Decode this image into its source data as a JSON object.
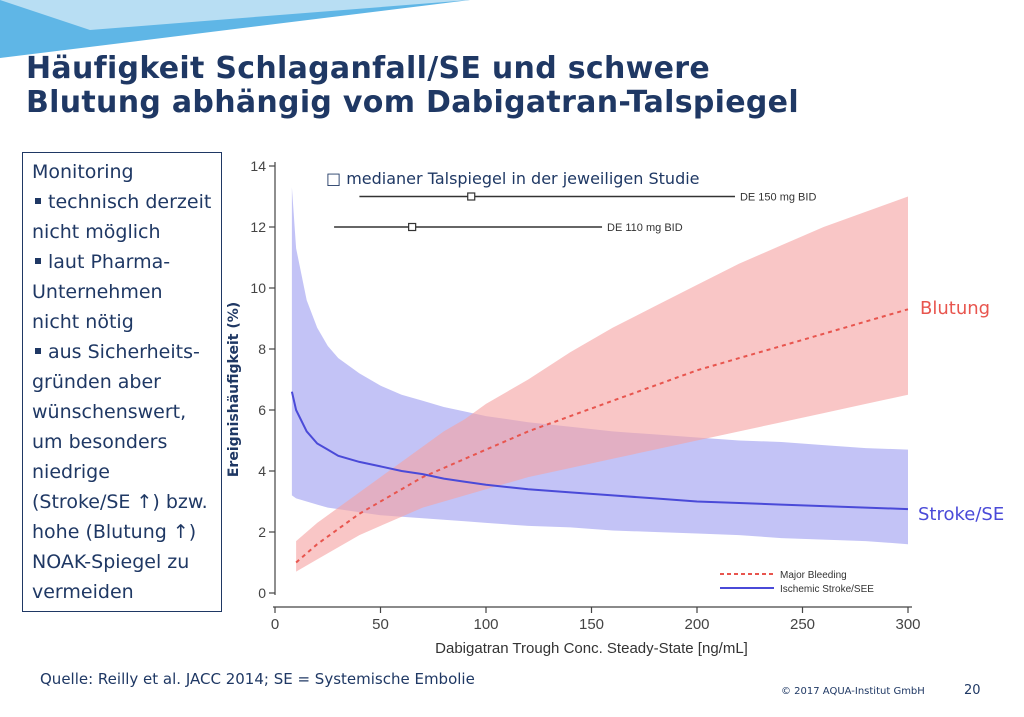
{
  "slide": {
    "title_line1": "Häufigkeit Schlaganfall/SE und schwere",
    "title_line2": "Blutung abhängig vom Dabigatran-Talspiegel",
    "title_color": "#1f3864",
    "banner_colors": [
      "#5fb6e6",
      "#b8def3"
    ]
  },
  "monitoring": {
    "lines": [
      {
        "text": "Monitoring",
        "bullet": false
      },
      {
        "text": "technisch derzeit",
        "bullet": true
      },
      {
        "text": "nicht möglich",
        "bullet": false
      },
      {
        "text": "laut Pharma-",
        "bullet": true
      },
      {
        "text": "Unternehmen",
        "bullet": false
      },
      {
        "text": "nicht nötig",
        "bullet": false
      },
      {
        "text": "aus Sicherheits-",
        "bullet": true
      },
      {
        "text": "gründen aber",
        "bullet": false
      },
      {
        "text": "wünschenswert,",
        "bullet": false
      },
      {
        "text": "um besonders",
        "bullet": false
      },
      {
        "text": "niedrige",
        "bullet": false
      },
      {
        "text": "(Stroke/SE ↑) bzw.",
        "bullet": false
      },
      {
        "text": "hohe (Blutung ↑)",
        "bullet": false
      },
      {
        "text": "NOAK-Spiegel zu",
        "bullet": false
      },
      {
        "text": "vermeiden",
        "bullet": false
      }
    ]
  },
  "chart_data": {
    "type": "line",
    "xlabel": "Dabigatran Trough Conc. Steady-State [ng/mL]",
    "ylabel": "Ereignishäufigkeit (%)",
    "xlim": [
      0,
      300
    ],
    "ylim": [
      0,
      14
    ],
    "xticks": [
      "0",
      "50",
      "100",
      "150",
      "200",
      "250",
      "300"
    ],
    "yticks": [
      "0",
      "2",
      "4",
      "6",
      "8",
      "10",
      "12",
      "14"
    ],
    "grid": false,
    "legend_position": "bottom-right",
    "legend": [
      {
        "label": "Major Bleeding",
        "color": "#e8554e",
        "dash": true
      },
      {
        "label": "Ischemic Stroke/SEE",
        "color": "#4a4ad8",
        "dash": false
      }
    ],
    "annotation": "□ medianer Talspiegel in der jeweiligen Studie",
    "series": [
      {
        "key": "bleeding",
        "label": "Blutung",
        "color": "#e8554e",
        "band_color": "#f6a3a3",
        "x": [
          10,
          20,
          30,
          40,
          50,
          60,
          70,
          80,
          90,
          100,
          120,
          140,
          160,
          180,
          200,
          220,
          240,
          260,
          280,
          300
        ],
        "y": [
          1.0,
          1.6,
          2.1,
          2.6,
          3.0,
          3.4,
          3.8,
          4.1,
          4.4,
          4.7,
          5.3,
          5.8,
          6.3,
          6.8,
          7.3,
          7.7,
          8.1,
          8.5,
          8.9,
          9.3
        ],
        "lower": [
          0.7,
          1.1,
          1.5,
          1.9,
          2.2,
          2.5,
          2.8,
          3.0,
          3.2,
          3.4,
          3.8,
          4.1,
          4.4,
          4.7,
          5.0,
          5.3,
          5.6,
          5.9,
          6.2,
          6.5
        ],
        "upper": [
          1.7,
          2.3,
          2.8,
          3.3,
          3.8,
          4.3,
          4.8,
          5.3,
          5.7,
          6.2,
          7.0,
          7.9,
          8.7,
          9.4,
          10.1,
          10.8,
          11.4,
          12.0,
          12.5,
          13.0
        ]
      },
      {
        "key": "stroke",
        "label": "Stroke/SE",
        "color": "#4a4ad8",
        "band_color": "#a9a9f2",
        "x": [
          8,
          10,
          15,
          20,
          25,
          30,
          40,
          50,
          60,
          70,
          80,
          90,
          100,
          120,
          140,
          160,
          180,
          200,
          220,
          240,
          260,
          280,
          300
        ],
        "y": [
          6.6,
          6.0,
          5.3,
          4.9,
          4.7,
          4.5,
          4.3,
          4.15,
          4.0,
          3.9,
          3.75,
          3.65,
          3.55,
          3.4,
          3.3,
          3.2,
          3.1,
          3.0,
          2.95,
          2.9,
          2.85,
          2.8,
          2.75
        ],
        "lower": [
          3.2,
          3.1,
          3.0,
          2.9,
          2.8,
          2.75,
          2.65,
          2.55,
          2.5,
          2.45,
          2.4,
          2.35,
          2.3,
          2.2,
          2.15,
          2.05,
          2.0,
          1.95,
          1.9,
          1.8,
          1.75,
          1.7,
          1.6
        ],
        "upper": [
          13.3,
          11.3,
          9.6,
          8.7,
          8.1,
          7.7,
          7.2,
          6.8,
          6.5,
          6.3,
          6.1,
          5.95,
          5.8,
          5.6,
          5.45,
          5.3,
          5.2,
          5.1,
          5.0,
          4.95,
          4.85,
          4.75,
          4.7
        ]
      }
    ],
    "dose_intervals": [
      {
        "label": "DE 150 mg BID",
        "low": 40,
        "median": 93,
        "high": 218,
        "y": 13.0
      },
      {
        "label": "DE 110 mg BID",
        "low": 28,
        "median": 65,
        "high": 155,
        "y": 12.0
      }
    ]
  },
  "footer": {
    "source": "Quelle: Reilly et al. JACC 2014; SE = Systemische Embolie",
    "copyright": "© 2017 AQUA-Institut GmbH",
    "page": "20"
  }
}
